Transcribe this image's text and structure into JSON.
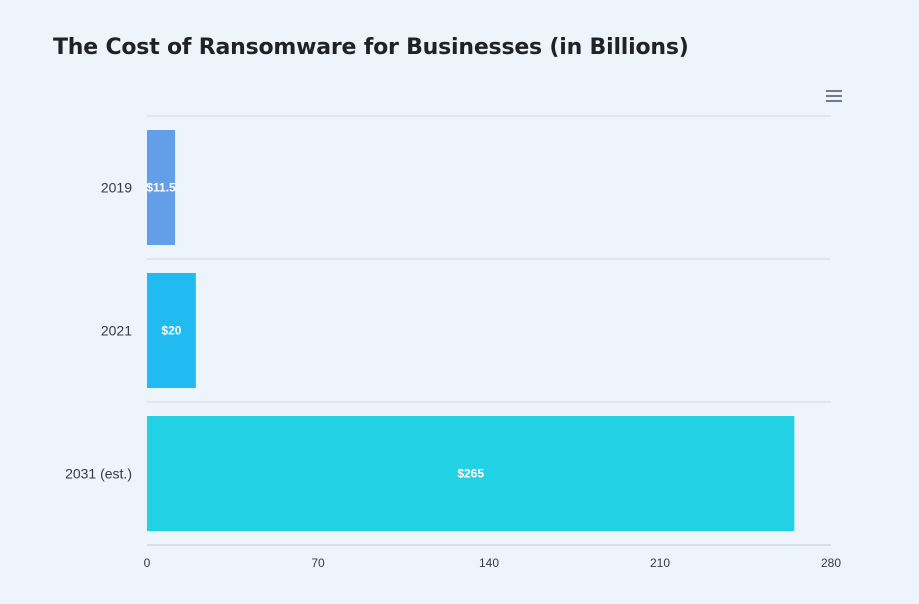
{
  "chart_data": {
    "type": "bar",
    "orientation": "horizontal",
    "title": "The Cost of Ransomware for Businesses (in Billions)",
    "categories": [
      "2019",
      "2021",
      "2031 (est.)"
    ],
    "values": [
      11.5,
      20,
      265
    ],
    "data_labels": [
      "$11.5",
      "$20",
      "$265"
    ],
    "colors": [
      "#659ee8",
      "#21bbf1",
      "#22d1e3"
    ],
    "xlim": [
      0,
      280
    ],
    "x_ticks": [
      "0",
      "70",
      "140",
      "210",
      "280"
    ],
    "xlabel": "",
    "ylabel": "",
    "grid": true,
    "legend": "none"
  },
  "toolbar": {
    "menu_icon": "hamburger-menu-icon"
  }
}
